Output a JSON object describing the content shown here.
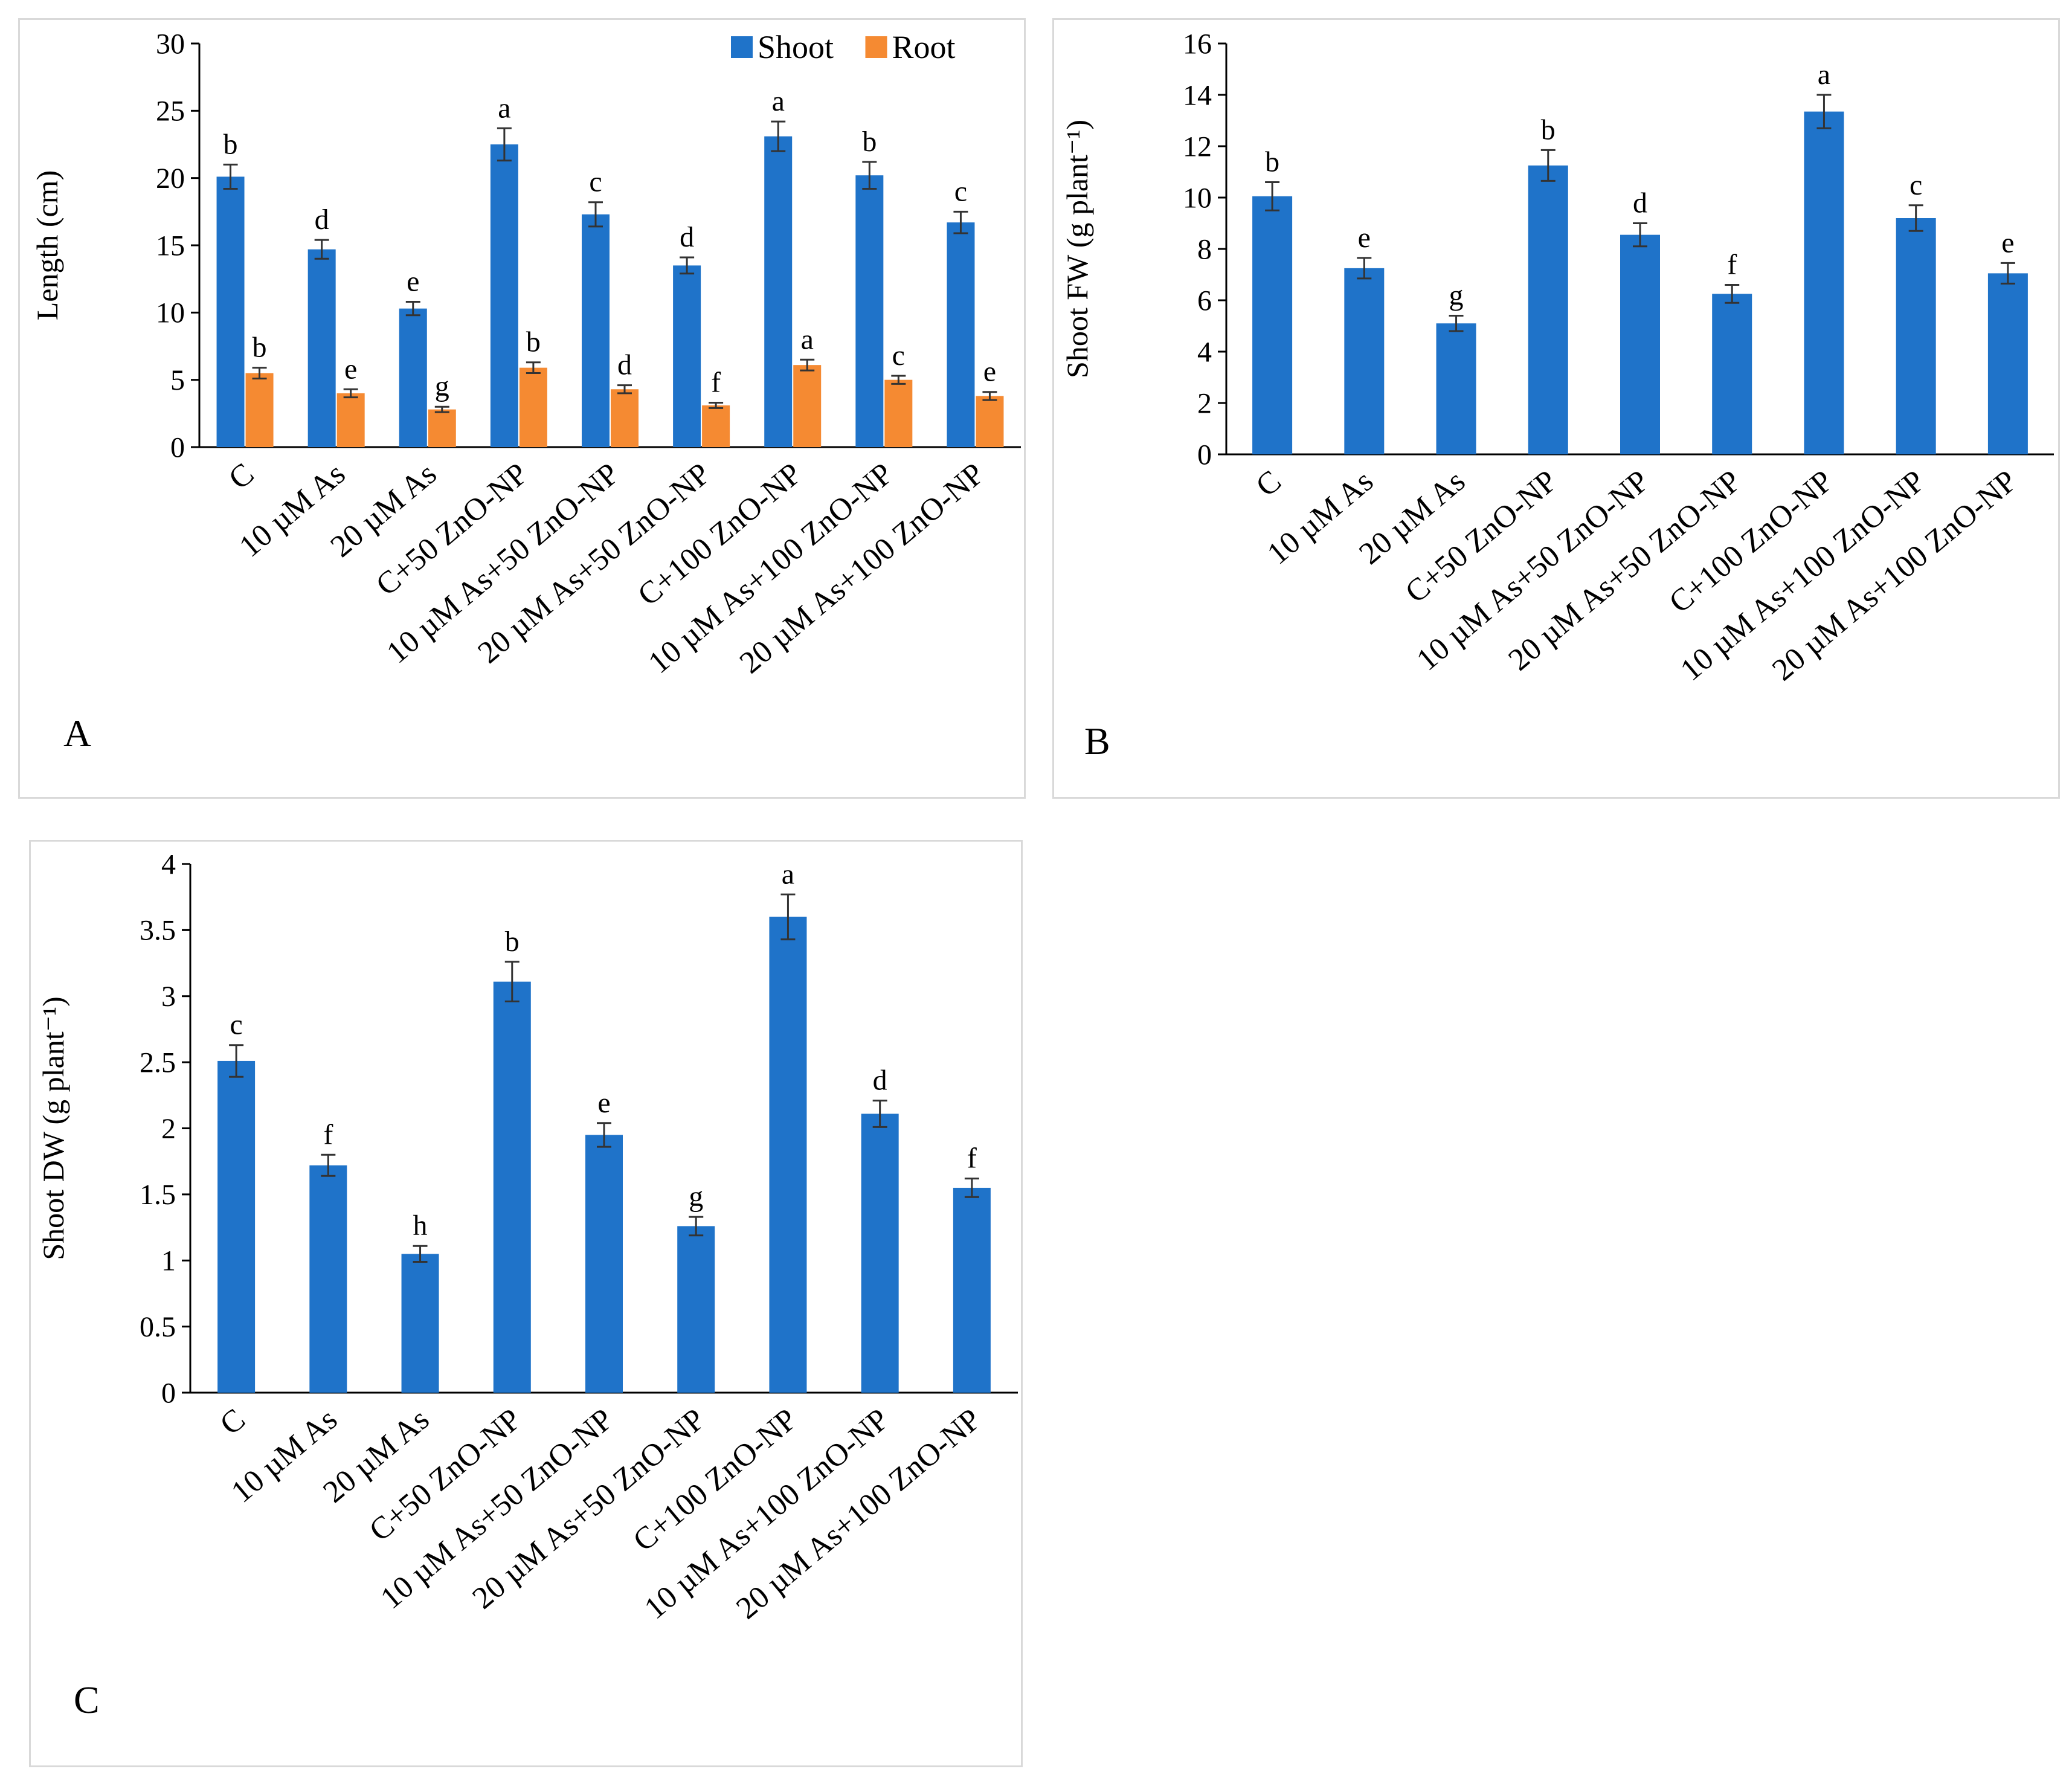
{
  "colors": {
    "shoot": "#1f73c9",
    "root": "#f58a32",
    "axis": "#000000",
    "error": "#333333",
    "frame": "#d9d9d9"
  },
  "chart_data": [
    {
      "type": "bar",
      "panel_label": "A",
      "title": "",
      "xlabel": "",
      "ylabel": "Length (cm)",
      "ylim": [
        0,
        30
      ],
      "yticks": [
        "0",
        "5",
        "10",
        "15",
        "20",
        "25",
        "30"
      ],
      "grid": false,
      "legend": "top-right",
      "categories": [
        "C",
        "10 µM As",
        "20 µM As",
        "C+50 ZnO-NP",
        "10 µM As+50 ZnO-NP",
        "20 µM As+50 ZnO-NP",
        "C+100 ZnO-NP",
        "10 µM As+100 ZnO-NP",
        "20 µM As+100 ZnO-NP"
      ],
      "series": [
        {
          "name": "Shoot",
          "color": "#1f73c9",
          "values": [
            20.1,
            14.7,
            10.3,
            22.5,
            17.3,
            13.5,
            23.1,
            20.2,
            16.7
          ],
          "errors": [
            0.9,
            0.7,
            0.5,
            1.2,
            0.9,
            0.6,
            1.1,
            1.0,
            0.8
          ],
          "labels": [
            "b",
            "d",
            "e",
            "a",
            "c",
            "d",
            "a",
            "b",
            "c"
          ]
        },
        {
          "name": "Root",
          "color": "#f58a32",
          "values": [
            5.5,
            4.0,
            2.8,
            5.9,
            4.3,
            3.1,
            6.1,
            5.0,
            3.8
          ],
          "errors": [
            0.4,
            0.3,
            0.2,
            0.4,
            0.3,
            0.2,
            0.4,
            0.3,
            0.3
          ],
          "labels": [
            "b",
            "e",
            "g",
            "b",
            "d",
            "f",
            "a",
            "c",
            "e"
          ]
        }
      ]
    },
    {
      "type": "bar",
      "panel_label": "B",
      "title": "",
      "xlabel": "",
      "ylabel": "Shoot FW (g plant⁻¹)",
      "ylim": [
        0,
        16
      ],
      "yticks": [
        "0",
        "2",
        "4",
        "6",
        "8",
        "10",
        "12",
        "14",
        "16"
      ],
      "grid": false,
      "categories": [
        "C",
        "10 µM As",
        "20 µM As",
        "C+50 ZnO-NP",
        "10 µM As+50 ZnO-NP",
        "20 µM As+50 ZnO-NP",
        "C+100 ZnO-NP",
        "10 µM As+100 ZnO-NP",
        "20 µM As+100 ZnO-NP"
      ],
      "series": [
        {
          "name": "Shoot FW",
          "color": "#1f73c9",
          "values": [
            10.05,
            7.25,
            5.1,
            11.25,
            8.55,
            6.25,
            13.35,
            9.2,
            7.05
          ],
          "errors": [
            0.55,
            0.4,
            0.3,
            0.6,
            0.45,
            0.35,
            0.65,
            0.5,
            0.4
          ],
          "labels": [
            "b",
            "e",
            "g",
            "b",
            "d",
            "f",
            "a",
            "c",
            "e"
          ]
        }
      ]
    },
    {
      "type": "bar",
      "panel_label": "C",
      "title": "",
      "xlabel": "",
      "ylabel": "Shoot DW (g plant⁻¹)",
      "ylim": [
        0,
        4
      ],
      "yticks": [
        "0",
        "0.5",
        "1",
        "1.5",
        "2",
        "2.5",
        "3",
        "3.5",
        "4"
      ],
      "grid": false,
      "categories": [
        "C",
        "10 µM As",
        "20 µM As",
        "C+50 ZnO-NP",
        "10 µM As+50 ZnO-NP",
        "20 µM As+50 ZnO-NP",
        "C+100 ZnO-NP",
        "10 µM As+100 ZnO-NP",
        "20 µM As+100 ZnO-NP"
      ],
      "series": [
        {
          "name": "Shoot DW",
          "color": "#1f73c9",
          "values": [
            2.51,
            1.72,
            1.05,
            3.11,
            1.95,
            1.26,
            3.6,
            2.11,
            1.55
          ],
          "errors": [
            0.12,
            0.08,
            0.06,
            0.15,
            0.09,
            0.07,
            0.17,
            0.1,
            0.07
          ],
          "labels": [
            "c",
            "f",
            "h",
            "b",
            "e",
            "g",
            "a",
            "d",
            "f"
          ]
        }
      ]
    }
  ]
}
